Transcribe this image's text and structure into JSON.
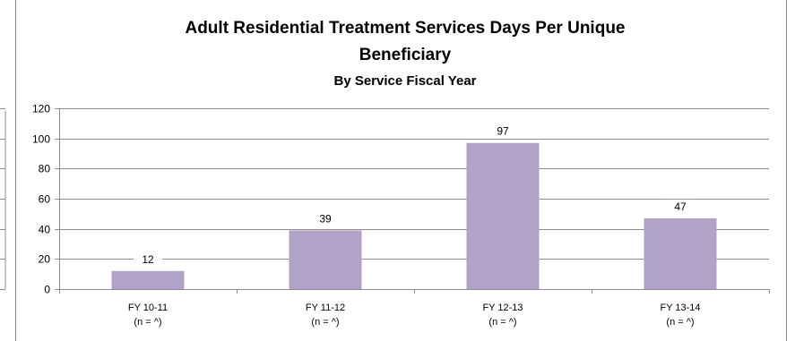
{
  "chart_data": {
    "type": "bar",
    "title_lines": [
      "Adult Residential Treatment Services Days Per Unique",
      "Beneficiary"
    ],
    "subtitle": "By Service Fiscal Year",
    "categories": [
      {
        "line1": "FY 10-11",
        "line2": "(n = ^)"
      },
      {
        "line1": "FY 11-12",
        "line2": "(n = ^)"
      },
      {
        "line1": "FY 12-13",
        "line2": "(n = ^)"
      },
      {
        "line1": "FY 13-14",
        "line2": "(n = ^)"
      }
    ],
    "values": [
      12,
      39,
      97,
      47
    ],
    "ylim": [
      0,
      120
    ],
    "yticks": [
      0,
      20,
      40,
      60,
      80,
      100,
      120
    ],
    "grid": true,
    "bar_color": "#b3a2c7"
  }
}
